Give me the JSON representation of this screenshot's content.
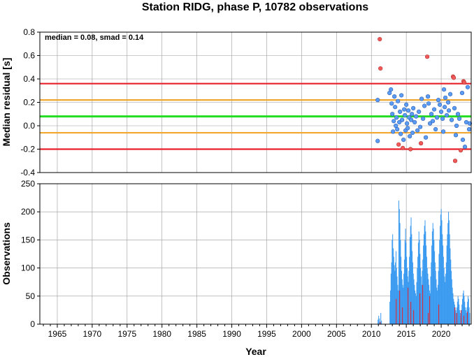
{
  "chart_data": [
    {
      "type": "scatter",
      "title": "Station RIDG, phase P, 10782 observations",
      "ylabel": "Median residual [s]",
      "xlim": [
        1962.5,
        2024.3
      ],
      "ylim": [
        -0.4,
        0.8
      ],
      "yticks": [
        -0.4,
        -0.2,
        0.0,
        0.2,
        0.4,
        0.6,
        0.8
      ],
      "ytick_labels": [
        "-0.4",
        "-0.2",
        "0.0",
        "0.2",
        "0.4",
        "0.6",
        "0.8"
      ],
      "grid": true,
      "annotation": "median = 0.08, smad = 0.14",
      "reference_lines": [
        {
          "value": 0.36,
          "color": "#e8202a"
        },
        {
          "value": 0.22,
          "color": "#f0a830"
        },
        {
          "value": 0.08,
          "color": "#22dd22"
        },
        {
          "value": -0.06,
          "color": "#f0a830"
        },
        {
          "value": -0.2,
          "color": "#e8202a"
        }
      ],
      "colors": {
        "inlier": "#5b9cf5",
        "outlier": "#f25a5a"
      },
      "points": [
        [
          2010.9,
          0.22,
          0
        ],
        [
          2010.9,
          -0.13,
          0
        ],
        [
          2011.2,
          0.74,
          1
        ],
        [
          2011.3,
          0.49,
          1
        ],
        [
          2012.6,
          0.28,
          0
        ],
        [
          2012.8,
          0.31,
          0
        ],
        [
          2012.9,
          0.19,
          0
        ],
        [
          2013.0,
          0.1,
          0
        ],
        [
          2013.1,
          -0.05,
          0
        ],
        [
          2013.2,
          0.04,
          0
        ],
        [
          2013.3,
          0.25,
          0
        ],
        [
          2013.4,
          0.16,
          0
        ],
        [
          2013.5,
          0.0,
          0
        ],
        [
          2013.6,
          0.07,
          0
        ],
        [
          2013.7,
          -0.03,
          0
        ],
        [
          2013.8,
          0.21,
          0
        ],
        [
          2013.9,
          -0.16,
          1
        ],
        [
          2014.0,
          0.03,
          0
        ],
        [
          2014.1,
          0.12,
          0
        ],
        [
          2014.2,
          -0.07,
          0
        ],
        [
          2014.3,
          0.26,
          0
        ],
        [
          2014.4,
          0.05,
          0
        ],
        [
          2014.5,
          -0.19,
          1
        ],
        [
          2014.6,
          -0.12,
          0
        ],
        [
          2014.7,
          0.14,
          0
        ],
        [
          2014.8,
          0.09,
          0
        ],
        [
          2014.9,
          -0.04,
          0
        ],
        [
          2015.0,
          0.18,
          0
        ],
        [
          2015.1,
          0.02,
          0
        ],
        [
          2015.2,
          -0.02,
          0
        ],
        [
          2015.3,
          0.13,
          0
        ],
        [
          2015.4,
          0.07,
          0
        ],
        [
          2015.5,
          -0.09,
          0
        ],
        [
          2015.6,
          -0.2,
          1
        ],
        [
          2015.7,
          0.05,
          0
        ],
        [
          2015.8,
          0.1,
          0
        ],
        [
          2015.9,
          -0.06,
          0
        ],
        [
          2016.0,
          0.15,
          0
        ],
        [
          2016.2,
          0.03,
          0
        ],
        [
          2016.4,
          0.08,
          0
        ],
        [
          2016.6,
          -0.04,
          0
        ],
        [
          2016.8,
          0.12,
          0
        ],
        [
          2017.0,
          -0.01,
          0
        ],
        [
          2017.1,
          -0.15,
          1
        ],
        [
          2017.2,
          0.23,
          0
        ],
        [
          2017.4,
          0.06,
          0
        ],
        [
          2017.6,
          0.17,
          0
        ],
        [
          2017.8,
          -0.1,
          0
        ],
        [
          2018.0,
          0.59,
          1
        ],
        [
          2018.1,
          0.25,
          0
        ],
        [
          2018.2,
          0.19,
          0
        ],
        [
          2018.4,
          0.02,
          0
        ],
        [
          2018.6,
          0.1,
          0
        ],
        [
          2018.8,
          0.04,
          0
        ],
        [
          2019.0,
          0.14,
          0
        ],
        [
          2019.2,
          -0.03,
          0
        ],
        [
          2019.4,
          0.07,
          0
        ],
        [
          2019.6,
          0.22,
          0
        ],
        [
          2019.8,
          0.18,
          0
        ],
        [
          2020.0,
          0.12,
          0
        ],
        [
          2020.2,
          0.06,
          0
        ],
        [
          2020.3,
          -0.05,
          0
        ],
        [
          2020.4,
          0.31,
          0
        ],
        [
          2020.5,
          0.16,
          0
        ],
        [
          2020.6,
          0.24,
          0
        ],
        [
          2020.8,
          0.09,
          0
        ],
        [
          2021.0,
          0.2,
          0
        ],
        [
          2021.1,
          0.13,
          0
        ],
        [
          2021.3,
          0.27,
          0
        ],
        [
          2021.5,
          0.05,
          0
        ],
        [
          2021.7,
          0.42,
          1
        ],
        [
          2021.8,
          0.41,
          1
        ],
        [
          2021.9,
          0.15,
          0
        ],
        [
          2022.0,
          -0.3,
          1
        ],
        [
          2022.1,
          -0.08,
          0
        ],
        [
          2022.2,
          0.0,
          0
        ],
        [
          2022.4,
          0.1,
          0
        ],
        [
          2022.6,
          0.06,
          0
        ],
        [
          2022.8,
          -0.21,
          1
        ],
        [
          2023.0,
          0.28,
          0
        ],
        [
          2023.1,
          -0.12,
          0
        ],
        [
          2023.2,
          0.38,
          1
        ],
        [
          2023.3,
          0.37,
          1
        ],
        [
          2023.4,
          -0.18,
          0
        ],
        [
          2023.6,
          0.03,
          0
        ],
        [
          2023.8,
          0.33,
          0
        ],
        [
          2024.0,
          -0.03,
          0
        ],
        [
          2024.1,
          0.02,
          0
        ]
      ]
    },
    {
      "type": "bar",
      "ylabel": "Observations",
      "xlabel": "Year",
      "xlim": [
        1962.5,
        2024.3
      ],
      "ylim": [
        0,
        250
      ],
      "yticks": [
        0,
        50,
        100,
        150,
        200,
        250
      ],
      "ytick_labels": [
        "0",
        "50",
        "100",
        "150",
        "200",
        "250"
      ],
      "xticks": [
        1965,
        1970,
        1975,
        1980,
        1985,
        1990,
        1995,
        2000,
        2005,
        2010,
        2015,
        2020
      ],
      "xtick_labels": [
        "1965",
        "1970",
        "1975",
        "1980",
        "1985",
        "1990",
        "1995",
        "2000",
        "2005",
        "2010",
        "2015",
        "2020"
      ],
      "grid": true,
      "colors": {
        "total": "#3a9af0",
        "outlier": "#e8202a"
      },
      "bin_width_years": 0.08,
      "series": [
        {
          "x": [
            2010.9,
            2011.0,
            2011.1,
            2011.2,
            2011.3,
            2011.4
          ],
          "values": [
            8,
            15,
            10,
            4,
            20,
            6
          ]
        },
        {
          "x_start": 2012.6,
          "values": [
            40,
            60,
            90,
            110,
            150,
            160,
            135,
            120,
            105,
            95,
            110,
            130,
            100,
            85,
            70,
            60,
            220,
            205,
            180,
            150,
            120,
            95,
            80,
            70,
            65,
            90,
            115,
            150,
            170,
            145,
            120,
            100,
            85,
            75,
            95,
            120,
            155,
            175,
            190,
            160,
            130,
            110,
            90,
            80,
            70,
            60,
            55,
            50,
            75,
            100,
            120,
            145,
            165,
            150,
            125,
            100,
            85,
            70,
            95,
            115,
            140,
            160,
            175,
            185,
            165,
            140,
            120,
            100,
            90,
            80,
            70,
            60,
            55,
            85,
            110,
            140,
            165,
            180,
            170,
            150,
            130,
            110,
            95,
            80,
            65,
            60,
            70,
            95,
            125,
            150,
            175,
            195,
            205,
            185,
            160,
            140,
            120,
            100,
            85,
            75,
            90,
            110,
            140,
            160,
            180,
            200,
            185,
            160,
            135,
            115,
            95,
            80,
            65,
            55,
            45,
            40,
            35,
            30,
            25,
            20,
            30,
            40,
            50,
            45,
            35,
            25,
            20,
            15,
            25,
            35,
            45,
            55,
            60,
            50,
            40,
            30,
            25,
            20,
            30,
            40,
            50,
            45,
            30,
            20
          ]
        }
      ],
      "outlier_bars": [
        {
          "x": 2011.2,
          "value": 4
        },
        {
          "x": 2013.5,
          "value": 45
        },
        {
          "x": 2014.0,
          "value": 60
        },
        {
          "x": 2014.4,
          "value": 30
        },
        {
          "x": 2015.2,
          "value": 65
        },
        {
          "x": 2015.6,
          "value": 40
        },
        {
          "x": 2016.0,
          "value": 25
        },
        {
          "x": 2016.9,
          "value": 55
        },
        {
          "x": 2017.3,
          "value": 70
        },
        {
          "x": 2018.1,
          "value": 20
        },
        {
          "x": 2018.3,
          "value": 50
        },
        {
          "x": 2019.6,
          "value": 35
        },
        {
          "x": 2021.9,
          "value": 30
        },
        {
          "x": 2022.2,
          "value": 20
        },
        {
          "x": 2022.8,
          "value": 25
        },
        {
          "x": 2023.2,
          "value": 15
        },
        {
          "x": 2023.7,
          "value": 22
        }
      ]
    }
  ]
}
